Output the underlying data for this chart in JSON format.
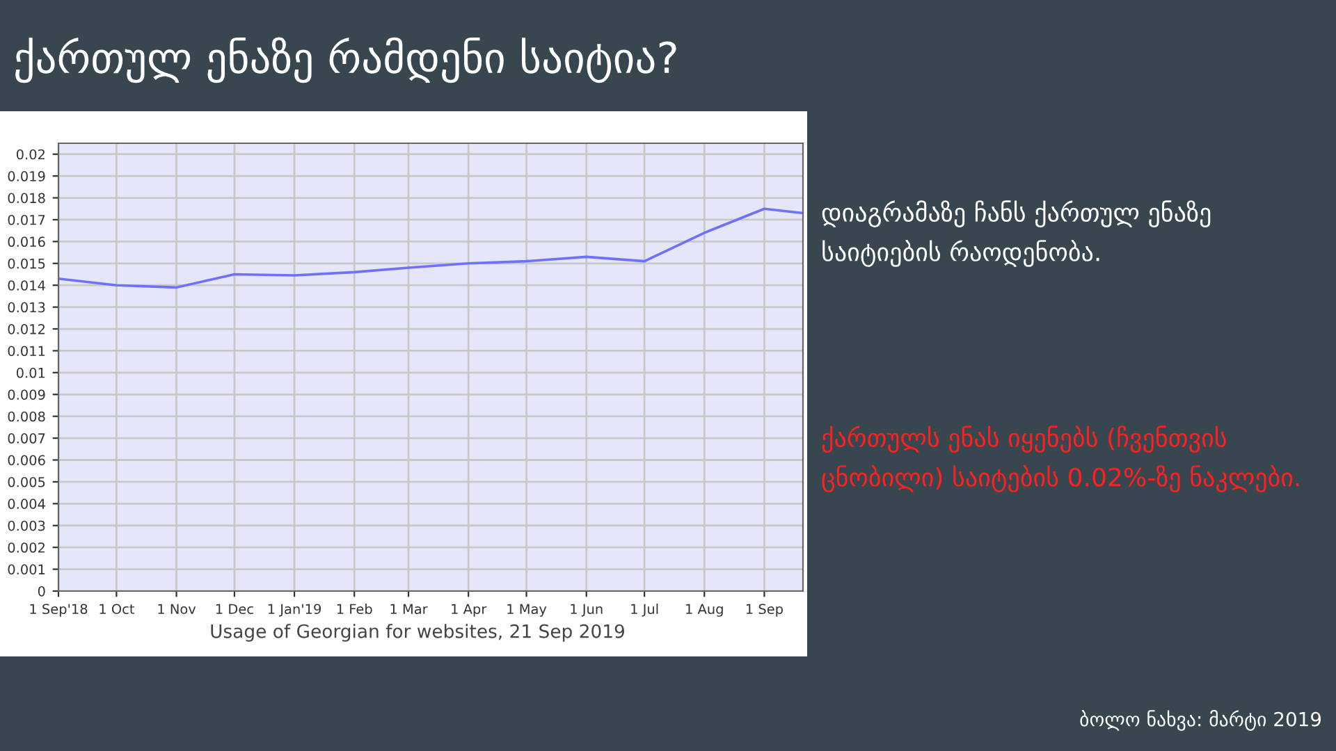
{
  "chart_data": {
    "type": "line",
    "title": "ქართულ ენაზე რამდენი საიტია?",
    "x": [
      "2018-09-01",
      "2018-10-01",
      "2018-11-01",
      "2018-12-01",
      "2019-01-01",
      "2019-02-01",
      "2019-03-01",
      "2019-04-01",
      "2019-05-01",
      "2019-06-01",
      "2019-07-01",
      "2019-08-01",
      "2019-09-01",
      "2019-09-21"
    ],
    "series": [
      {
        "color": "#7070ff",
        "values": [
          0.0143,
          0.014,
          0.0139,
          0.0145,
          0.01445,
          0.0146,
          0.0148,
          0.015,
          0.0151,
          0.0153,
          0.0151,
          0.0164,
          0.0175,
          0.0173
        ]
      }
    ],
    "xlim": [
      "2018-09-01",
      "2019-09-21"
    ],
    "xticks": [
      {
        "value": "2018-09-01",
        "label": "1 Sep'18"
      },
      {
        "value": "2018-10-01",
        "label": "1 Oct"
      },
      {
        "value": "2018-11-01",
        "label": "1 Nov"
      },
      {
        "value": "2018-12-01",
        "label": "1 Dec"
      },
      {
        "value": "2019-01-01",
        "label": "1 Jan'19"
      },
      {
        "value": "2019-02-01",
        "label": "1 Feb"
      },
      {
        "value": "2019-03-01",
        "label": "1 Mar"
      },
      {
        "value": "2019-04-01",
        "label": "1 Apr"
      },
      {
        "value": "2019-05-01",
        "label": "1 May"
      },
      {
        "value": "2019-06-01",
        "label": "1 Jun"
      },
      {
        "value": "2019-07-01",
        "label": "1 Jul"
      },
      {
        "value": "2019-08-01",
        "label": "1 Aug"
      },
      {
        "value": "2019-09-01",
        "label": "1 Sep"
      }
    ],
    "ylim": [
      0,
      0.0205
    ],
    "yticks": [
      0,
      0.001,
      0.002,
      0.003,
      0.004,
      0.005,
      0.006,
      0.007,
      0.008,
      0.009,
      0.01,
      0.011,
      0.012,
      0.013,
      0.014,
      0.015,
      0.016,
      0.017,
      0.018,
      0.019,
      0.02
    ],
    "grid": true,
    "annotations": [
      "Usage of Georgian for websites, 21 Sep 2019",
      "დიაგრამაზე ჩანს ქართულ ენაზე საიტიების რაოდენობა.",
      "ქართულს ენას იყენებს (ჩვენთვის ცნობილი) საიტების 0.02%-ზე ნაკლები.",
      "ბოლო ნახვა: მარტი 2019"
    ]
  }
}
